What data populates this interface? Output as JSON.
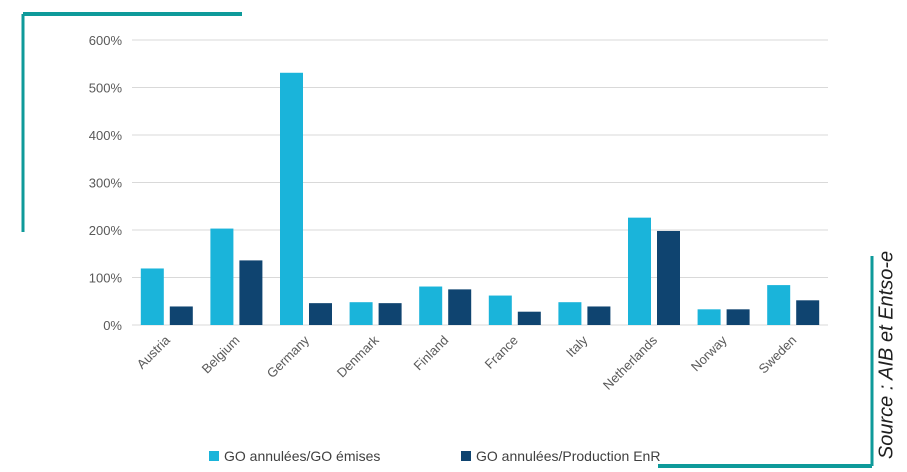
{
  "chart_data": {
    "type": "bar",
    "categories": [
      "Austria",
      "Belgium",
      "Germany",
      "Denmark",
      "Finland",
      "France",
      "Italy",
      "Netherlands",
      "Norway",
      "Sweden"
    ],
    "series": [
      {
        "name": "GO annulées/GO émises",
        "values": [
          119,
          203,
          531,
          48,
          81,
          62,
          48,
          226,
          33,
          84
        ]
      },
      {
        "name": "GO annulées/Production EnR",
        "values": [
          39,
          136,
          46,
          46,
          75,
          28,
          39,
          198,
          33,
          52
        ]
      }
    ],
    "y_ticks": [
      "0%",
      "100%",
      "200%",
      "300%",
      "400%",
      "500%",
      "600%"
    ],
    "ylim": [
      0,
      600
    ],
    "y_unit": "%",
    "grid": true,
    "legend_position": "bottom",
    "colors": {
      "series_1": "#1AB4DA",
      "series_2": "#0F4470",
      "accent": "#0E9A9A",
      "gridline": "#D9D9D9"
    },
    "source_note": "Source : AIB et Entso-e"
  }
}
